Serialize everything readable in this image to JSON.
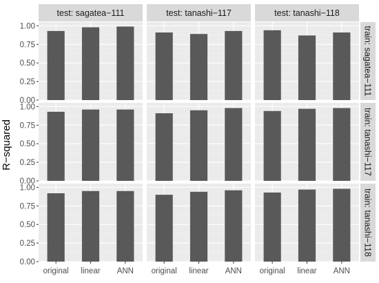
{
  "chart_data": {
    "type": "bar",
    "facets": {
      "columns": [
        "test: sagatea−111",
        "test: tanashi−117",
        "test: tanashi−118"
      ],
      "rows": [
        "train: sagatea−111",
        "train: tanashi−117",
        "train: tanashi−118"
      ]
    },
    "categories": [
      "original",
      "linear",
      "ANN"
    ],
    "ylabel": "R−squared",
    "xlabel": "",
    "ylim": [
      0,
      1.05
    ],
    "yticks": [
      0.0,
      0.25,
      0.5,
      0.75,
      1.0
    ],
    "ytick_labels": [
      "0.00",
      "0.25",
      "0.50",
      "0.75",
      "1.00"
    ],
    "grid": true,
    "values": [
      [
        [
          0.93,
          0.98,
          0.99
        ],
        [
          0.91,
          0.89,
          0.93
        ],
        [
          0.94,
          0.87,
          0.91
        ]
      ],
      [
        [
          0.93,
          0.96,
          0.96
        ],
        [
          0.91,
          0.95,
          0.98
        ],
        [
          0.94,
          0.97,
          0.98
        ]
      ],
      [
        [
          0.92,
          0.95,
          0.95
        ],
        [
          0.9,
          0.94,
          0.96
        ],
        [
          0.93,
          0.97,
          0.98
        ]
      ]
    ],
    "colors": {
      "bar": "#595959",
      "panel_bg": "#ebebeb",
      "grid_major": "#ffffff",
      "grid_minor": "#f3f3f3",
      "strip_bg": "#d9d9d9",
      "tick": "#333333"
    }
  }
}
